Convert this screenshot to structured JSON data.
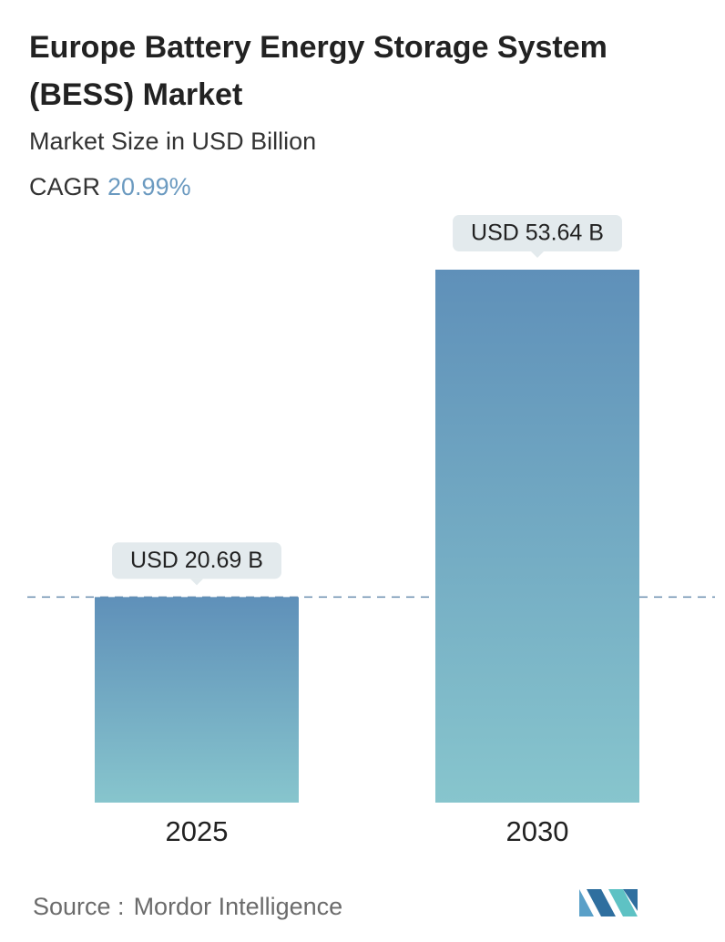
{
  "chart_data": {
    "type": "bar",
    "title": "Europe Battery Energy Storage System (BESS) Market",
    "subtitle": "Market Size in USD Billion",
    "cagr_label": "CAGR",
    "cagr_value": "20.99%",
    "categories": [
      "2025",
      "2030"
    ],
    "values": [
      20.69,
      53.64
    ],
    "value_labels": [
      "USD 20.69 B",
      "USD 53.64 B"
    ],
    "source_label": "Source :",
    "source": "Mordor Intelligence"
  }
}
